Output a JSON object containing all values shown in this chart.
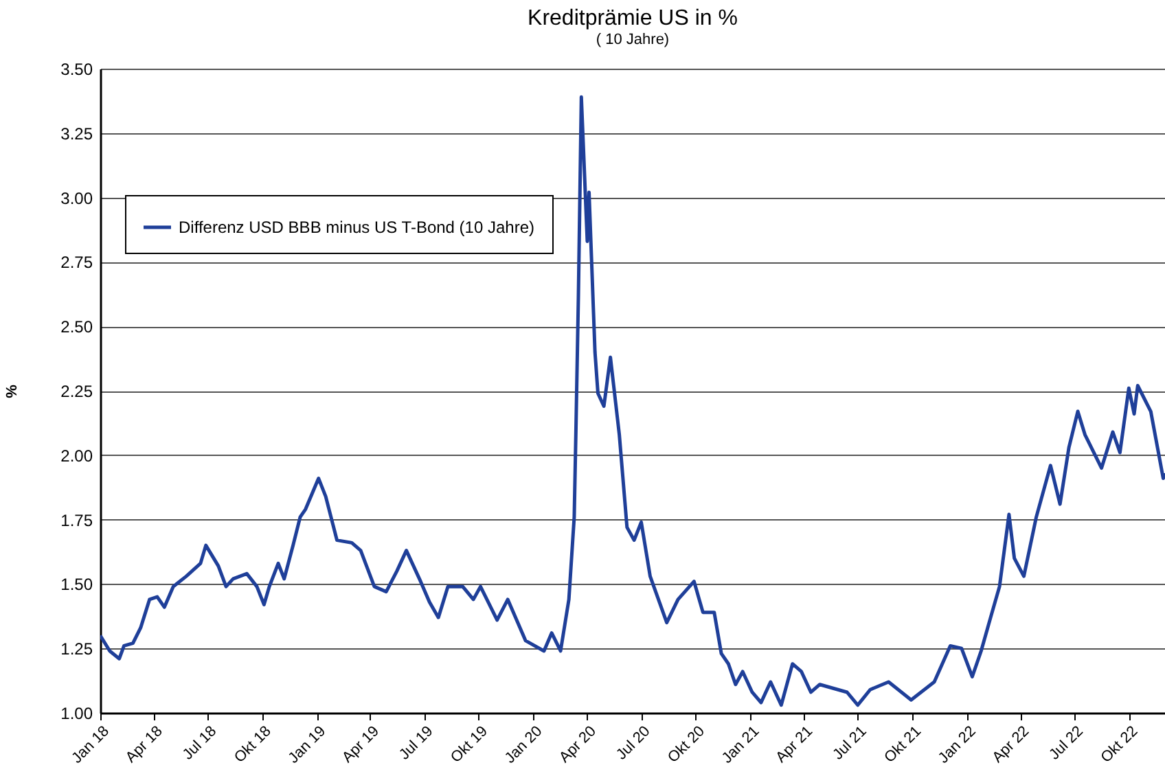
{
  "chart_data": {
    "type": "line",
    "title": "Kreditprämie US in %",
    "subtitle": "( 10 Jahre)",
    "ylabel": "%",
    "x": [
      "2018-01-01",
      "2018-01-17",
      "2018-02-02",
      "2018-02-10",
      "2018-02-25",
      "2018-03-10",
      "2018-03-25",
      "2018-04-07",
      "2018-04-19",
      "2018-05-04",
      "2018-05-26",
      "2018-06-19",
      "2018-06-28",
      "2018-07-19",
      "2018-08-01",
      "2018-08-13",
      "2018-09-05",
      "2018-09-22",
      "2018-10-04",
      "2018-10-13",
      "2018-10-28",
      "2018-11-07",
      "2018-11-22",
      "2018-12-04",
      "2018-12-13",
      "2019-01-04",
      "2019-01-16",
      "2019-02-04",
      "2019-03-01",
      "2019-03-16",
      "2019-04-08",
      "2019-04-28",
      "2019-05-16",
      "2019-06-01",
      "2019-06-25",
      "2019-07-10",
      "2019-07-25",
      "2019-08-10",
      "2019-09-04",
      "2019-09-22",
      "2019-10-04",
      "2019-11-01",
      "2019-11-19",
      "2019-12-19",
      "2020-01-19",
      "2020-02-01",
      "2020-02-16",
      "2020-03-01",
      "2020-03-10",
      "2020-03-13",
      "2020-03-17",
      "2020-03-22",
      "2020-04-01",
      "2020-04-04",
      "2020-04-14",
      "2020-04-19",
      "2020-04-29",
      "2020-05-10",
      "2020-05-25",
      "2020-06-07",
      "2020-06-19",
      "2020-07-01",
      "2020-07-16",
      "2020-08-13",
      "2020-09-01",
      "2020-09-28",
      "2020-10-13",
      "2020-11-01",
      "2020-11-13",
      "2020-11-25",
      "2020-12-07",
      "2020-12-19",
      "2021-01-04",
      "2021-01-19",
      "2021-02-04",
      "2021-02-22",
      "2021-03-13",
      "2021-03-28",
      "2021-04-13",
      "2021-04-28",
      "2021-06-13",
      "2021-07-01",
      "2021-07-22",
      "2021-08-22",
      "2021-09-29",
      "2021-11-07",
      "2021-12-04",
      "2021-12-23",
      "2022-01-10",
      "2022-01-25",
      "2022-02-10",
      "2022-02-25",
      "2022-03-13",
      "2022-03-22",
      "2022-04-07",
      "2022-04-28",
      "2022-05-22",
      "2022-06-07",
      "2022-06-22",
      "2022-07-07",
      "2022-07-19",
      "2022-08-16",
      "2022-09-04",
      "2022-09-16",
      "2022-10-01",
      "2022-10-10",
      "2022-10-16",
      "2022-11-07",
      "2022-11-28",
      "2022-12-01"
    ],
    "series": [
      {
        "name": "Differenz USD BBB minus US T-Bond (10 Jahre)",
        "color": "#1f3f99",
        "values": [
          1.3,
          1.24,
          1.21,
          1.26,
          1.27,
          1.33,
          1.44,
          1.45,
          1.41,
          1.49,
          1.53,
          1.58,
          1.65,
          1.57,
          1.49,
          1.52,
          1.54,
          1.49,
          1.42,
          1.49,
          1.58,
          1.52,
          1.65,
          1.76,
          1.79,
          1.91,
          1.84,
          1.67,
          1.66,
          1.63,
          1.49,
          1.47,
          1.55,
          1.63,
          1.51,
          1.43,
          1.37,
          1.49,
          1.49,
          1.44,
          1.49,
          1.36,
          1.44,
          1.28,
          1.24,
          1.31,
          1.24,
          1.44,
          1.76,
          2.11,
          2.61,
          3.39,
          2.83,
          3.02,
          2.4,
          2.24,
          2.19,
          2.38,
          2.08,
          1.72,
          1.67,
          1.74,
          1.53,
          1.35,
          1.44,
          1.51,
          1.39,
          1.39,
          1.23,
          1.19,
          1.11,
          1.16,
          1.08,
          1.04,
          1.12,
          1.03,
          1.19,
          1.16,
          1.08,
          1.11,
          1.08,
          1.03,
          1.09,
          1.12,
          1.05,
          1.12,
          1.26,
          1.25,
          1.14,
          1.24,
          1.37,
          1.49,
          1.77,
          1.6,
          1.53,
          1.76,
          1.96,
          1.81,
          2.03,
          2.17,
          2.08,
          1.95,
          2.09,
          2.01,
          2.26,
          2.16,
          2.27,
          2.17,
          1.91,
          1.93
        ]
      }
    ],
    "xlim": [
      "2018-01-01",
      "2022-12-01"
    ],
    "xticks": [
      {
        "value": "2018-01-01",
        "label": "Jan 18"
      },
      {
        "value": "2018-04-01",
        "label": "Apr 18"
      },
      {
        "value": "2018-07-01",
        "label": "Jul 18"
      },
      {
        "value": "2018-10-01",
        "label": "Okt 18"
      },
      {
        "value": "2019-01-01",
        "label": "Jan 19"
      },
      {
        "value": "2019-04-01",
        "label": "Apr 19"
      },
      {
        "value": "2019-07-01",
        "label": "Jul 19"
      },
      {
        "value": "2019-10-01",
        "label": "Okt 19"
      },
      {
        "value": "2020-01-01",
        "label": "Jan 20"
      },
      {
        "value": "2020-04-01",
        "label": "Apr 20"
      },
      {
        "value": "2020-07-01",
        "label": "Jul 20"
      },
      {
        "value": "2020-10-01",
        "label": "Okt 20"
      },
      {
        "value": "2021-01-01",
        "label": "Jan 21"
      },
      {
        "value": "2021-04-01",
        "label": "Apr 21"
      },
      {
        "value": "2021-07-01",
        "label": "Jul 21"
      },
      {
        "value": "2021-10-01",
        "label": "Okt 21"
      },
      {
        "value": "2022-01-01",
        "label": "Jan 22"
      },
      {
        "value": "2022-04-01",
        "label": "Apr 22"
      },
      {
        "value": "2022-07-01",
        "label": "Jul 22"
      },
      {
        "value": "2022-10-01",
        "label": "Okt 22"
      }
    ],
    "ylim": [
      1,
      3.5
    ],
    "yticks": [
      {
        "value": 1,
        "label": "1.00"
      },
      {
        "value": 1.25,
        "label": "1.25"
      },
      {
        "value": 1.5,
        "label": "1.50"
      },
      {
        "value": 1.75,
        "label": "1.75"
      },
      {
        "value": 2,
        "label": "2.00"
      },
      {
        "value": 2.25,
        "label": "2.25"
      },
      {
        "value": 2.5,
        "label": "2.50"
      },
      {
        "value": 2.75,
        "label": "2.75"
      },
      {
        "value": 3,
        "label": "3.00"
      },
      {
        "value": 3.25,
        "label": "3.25"
      },
      {
        "value": 3.5,
        "label": "3.50"
      }
    ],
    "grid": "y",
    "legend": "top left"
  }
}
